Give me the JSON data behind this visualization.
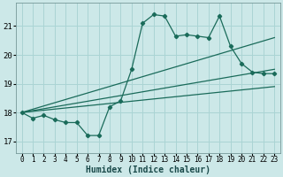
{
  "xlabel": "Humidex (Indice chaleur)",
  "ylabel": "",
  "bg_color": "#cce8e8",
  "grid_color": "#aad4d4",
  "line_color": "#1a6b5a",
  "xlim": [
    -0.5,
    23.5
  ],
  "ylim": [
    16.6,
    21.8
  ],
  "yticks": [
    17,
    18,
    19,
    20,
    21
  ],
  "xticks": [
    0,
    1,
    2,
    3,
    4,
    5,
    6,
    7,
    8,
    9,
    10,
    11,
    12,
    13,
    14,
    15,
    16,
    17,
    18,
    19,
    20,
    21,
    22,
    23
  ],
  "main_x": [
    0,
    1,
    2,
    3,
    4,
    5,
    6,
    7,
    8,
    9,
    10,
    11,
    12,
    13,
    14,
    15,
    16,
    17,
    18,
    19,
    20,
    21,
    22,
    23
  ],
  "main_y": [
    18.0,
    17.8,
    17.9,
    17.75,
    17.65,
    17.65,
    17.2,
    17.2,
    18.2,
    18.4,
    19.5,
    21.1,
    21.4,
    21.35,
    20.65,
    20.7,
    20.65,
    20.6,
    21.35,
    20.3,
    19.7,
    19.4,
    19.35,
    19.35
  ],
  "line1_x": [
    0,
    23
  ],
  "line1_y": [
    18.0,
    20.6
  ],
  "line2_x": [
    0,
    23
  ],
  "line2_y": [
    18.0,
    19.5
  ],
  "line3_x": [
    0,
    23
  ],
  "line3_y": [
    18.0,
    18.9
  ]
}
